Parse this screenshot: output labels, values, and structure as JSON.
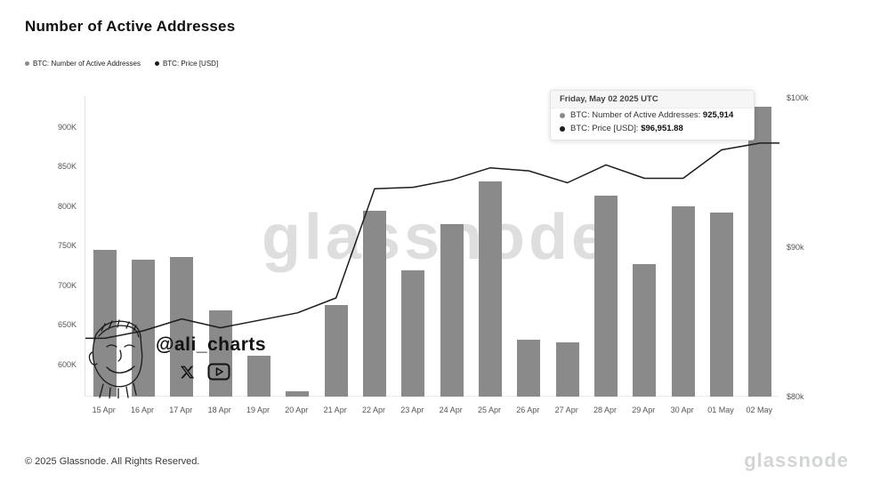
{
  "header": {
    "title": "Number of Active Addresses"
  },
  "legend": {
    "items": [
      {
        "label": "BTC: Number of Active Addresses",
        "color": "#8a8a8a"
      },
      {
        "label": "BTC: Price [USD]",
        "color": "#1c1c1c"
      }
    ]
  },
  "tooltip": {
    "date": "Friday, May 02 2025 UTC",
    "rows": [
      {
        "label": "BTC: Number of Active Addresses:",
        "value": "925,914",
        "color": "#8a8a8a"
      },
      {
        "label": "BTC: Price [USD]:",
        "value": "$96,951.88",
        "color": "#1c1c1c"
      }
    ]
  },
  "watermark": {
    "brand": "glassnode",
    "handle": "@ali_charts"
  },
  "footer": {
    "copyright": "© 2025 Glassnode. All Rights Reserved.",
    "brand": "glassnode"
  },
  "chart_data": {
    "type": "bar",
    "title": "Number of Active Addresses",
    "legend_position": "top-left",
    "grid": false,
    "categories": [
      "15 Apr",
      "16 Apr",
      "17 Apr",
      "18 Apr",
      "19 Apr",
      "20 Apr",
      "21 Apr",
      "22 Apr",
      "23 Apr",
      "24 Apr",
      "25 Apr",
      "26 Apr",
      "27 Apr",
      "28 Apr",
      "29 Apr",
      "30 Apr",
      "01 May",
      "02 May"
    ],
    "series": [
      {
        "name": "BTC: Number of Active Addresses",
        "type": "bar",
        "axis": "left",
        "color": "#8a8a8a",
        "values": [
          744000,
          732000,
          736000,
          668000,
          611000,
          566000,
          675000,
          794000,
          719000,
          777000,
          831000,
          631000,
          628000,
          813000,
          727000,
          800000,
          792000,
          925914
        ]
      },
      {
        "name": "BTC: Price [USD]",
        "type": "line",
        "axis": "right",
        "color": "#1c1c1c",
        "values": [
          83900,
          84400,
          85200,
          84600,
          85100,
          85600,
          86600,
          93900,
          94000,
          94500,
          95300,
          95100,
          94300,
          95500,
          94600,
          94600,
          96500,
          96951.88
        ]
      }
    ],
    "left_axis": {
      "min": 559000,
      "max": 939000,
      "ticks": [
        "600K",
        "650K",
        "700K",
        "750K",
        "800K",
        "850K",
        "900K"
      ],
      "tick_values": [
        600000,
        650000,
        700000,
        750000,
        800000,
        850000,
        900000
      ]
    },
    "right_axis": {
      "min": 80000,
      "max": 100100,
      "ticks": [
        "$80k",
        "$90k",
        "$100k"
      ],
      "tick_values": [
        80000,
        90000,
        100000
      ]
    }
  }
}
